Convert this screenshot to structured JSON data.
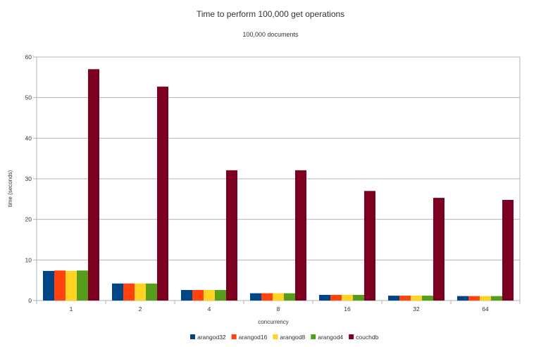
{
  "chart_data": {
    "type": "bar",
    "title": "Time to perform 100,000 get operations",
    "subtitle": "100,000 documents",
    "xlabel": "concurrency",
    "ylabel": "time (seconds)",
    "ylim": [
      0,
      60
    ],
    "yticks": [
      0,
      10,
      20,
      30,
      40,
      50,
      60
    ],
    "grid": true,
    "legend_position": "bottom",
    "categories": [
      "1",
      "2",
      "4",
      "8",
      "16",
      "32",
      "64"
    ],
    "series": [
      {
        "name": "arangod32",
        "color": "#004586",
        "values": [
          7.3,
          4.2,
          2.6,
          1.8,
          1.4,
          1.2,
          1.1
        ]
      },
      {
        "name": "arangod16",
        "color": "#ff420e",
        "values": [
          7.4,
          4.2,
          2.6,
          1.8,
          1.4,
          1.2,
          1.1
        ]
      },
      {
        "name": "arangod8",
        "color": "#ffd320",
        "values": [
          7.3,
          4.2,
          2.6,
          1.8,
          1.4,
          1.2,
          1.1
        ]
      },
      {
        "name": "arangod4",
        "color": "#579d1c",
        "values": [
          7.4,
          4.2,
          2.6,
          1.8,
          1.4,
          1.2,
          1.1
        ]
      },
      {
        "name": "couchdb",
        "color": "#7e0021",
        "values": [
          57.0,
          52.7,
          32.1,
          32.1,
          27.0,
          25.3,
          24.8
        ]
      }
    ]
  }
}
